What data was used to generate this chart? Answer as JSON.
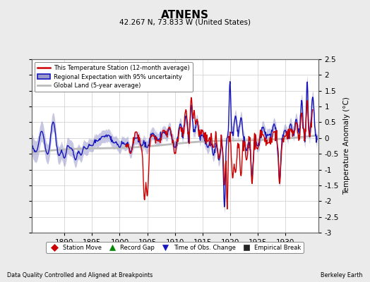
{
  "title": "ATNENS",
  "subtitle": "42.267 N, 73.833 W (United States)",
  "ylabel": "Temperature Anomaly (°C)",
  "xlabel_left": "Data Quality Controlled and Aligned at Breakpoints",
  "xlabel_right": "Berkeley Earth",
  "ylim": [
    -3.0,
    2.5
  ],
  "xlim": [
    1884,
    1936
  ],
  "xticks": [
    1890,
    1895,
    1900,
    1905,
    1910,
    1915,
    1920,
    1925,
    1930
  ],
  "yticks": [
    -3.0,
    -2.5,
    -2.0,
    -1.5,
    -1.0,
    -0.5,
    0.0,
    0.5,
    1.0,
    1.5,
    2.0,
    2.5
  ],
  "bg_color": "#ebebeb",
  "plot_bg_color": "#ffffff",
  "red_line_color": "#cc0000",
  "blue_line_color": "#1515bb",
  "blue_fill_color": "#9999cc",
  "gray_line_color": "#bbbbbb",
  "legend_labels": [
    "This Temperature Station (12-month average)",
    "Regional Expectation with 95% uncertainty",
    "Global Land (5-year average)"
  ],
  "bottom_legend": [
    {
      "marker": "D",
      "color": "#cc0000",
      "label": "Station Move"
    },
    {
      "marker": "^",
      "color": "#008800",
      "label": "Record Gap"
    },
    {
      "marker": "v",
      "color": "#1515bb",
      "label": "Time of Obs. Change"
    },
    {
      "marker": "s",
      "color": "#222222",
      "label": "Empirical Break"
    }
  ]
}
